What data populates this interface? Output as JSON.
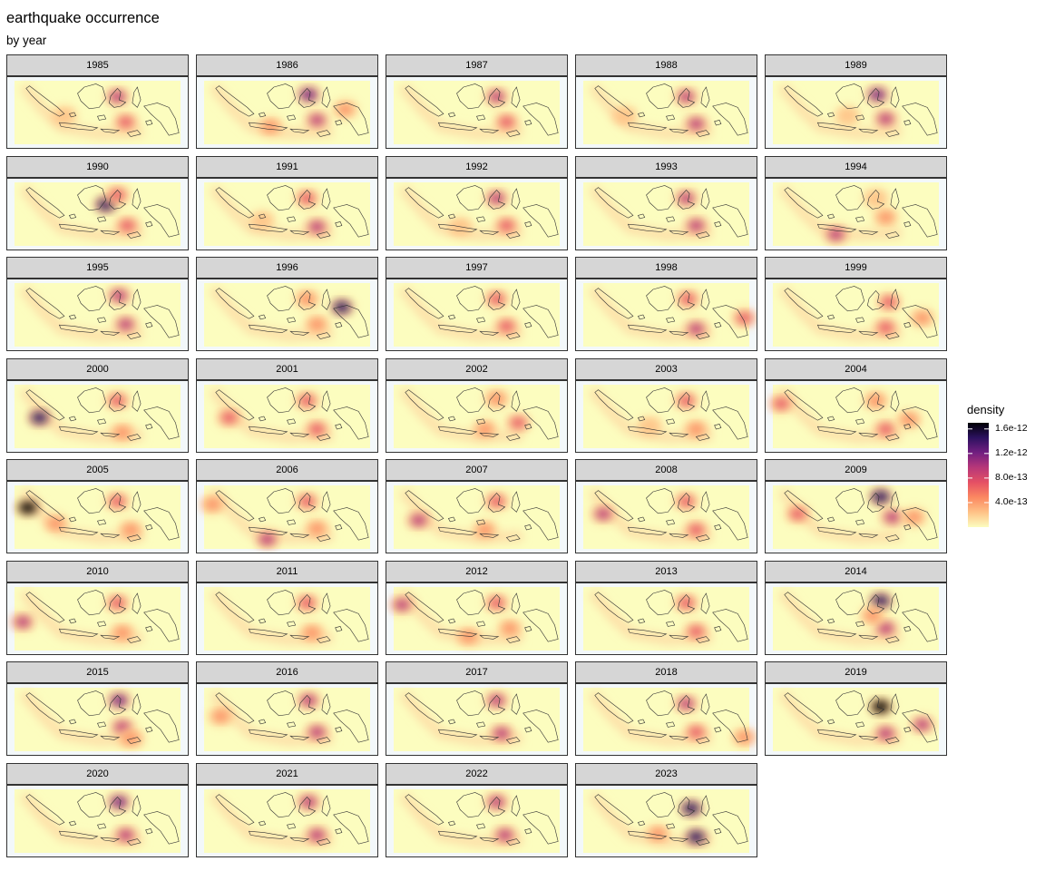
{
  "chart_data": {
    "type": "heatmap",
    "title": "earthquake occurrence",
    "subtitle": "by year",
    "facet_labels": [
      "1985",
      "1986",
      "1987",
      "1988",
      "1989",
      "1990",
      "1991",
      "1992",
      "1993",
      "1994",
      "1995",
      "1996",
      "1997",
      "1998",
      "1999",
      "2000",
      "2001",
      "2002",
      "2003",
      "2004",
      "2005",
      "2006",
      "2007",
      "2008",
      "2009",
      "2010",
      "2011",
      "2012",
      "2013",
      "2014",
      "2015",
      "2016",
      "2017",
      "2018",
      "2019",
      "2020",
      "2021",
      "2022",
      "2023"
    ],
    "legend": {
      "title": "density",
      "position": "right",
      "ticks": [
        "1.6e-12",
        "1.2e-12",
        "8.0e-13",
        "4.0e-13"
      ],
      "tick_values": [
        1.6e-12,
        1.2e-12,
        8e-13,
        4e-13
      ],
      "range": [
        0,
        1.7e-12
      ],
      "colors": [
        "#fcfdbf",
        "#fec287",
        "#fb8861",
        "#e55064",
        "#b73779",
        "#721f81",
        "#2c115f",
        "#000004"
      ]
    },
    "hotspots": {
      "1985": [
        [
          0.62,
          0.25,
          0.55
        ],
        [
          0.67,
          0.65,
          0.4
        ],
        [
          0.3,
          0.55,
          0.2
        ]
      ],
      "1986": [
        [
          0.63,
          0.22,
          0.75
        ],
        [
          0.68,
          0.62,
          0.5
        ],
        [
          0.4,
          0.72,
          0.25
        ],
        [
          0.85,
          0.45,
          0.25
        ]
      ],
      "1987": [
        [
          0.62,
          0.25,
          0.5
        ],
        [
          0.68,
          0.65,
          0.45
        ]
      ],
      "1988": [
        [
          0.62,
          0.25,
          0.5
        ],
        [
          0.68,
          0.68,
          0.55
        ],
        [
          0.25,
          0.55,
          0.2
        ]
      ],
      "1989": [
        [
          0.63,
          0.22,
          0.65
        ],
        [
          0.68,
          0.6,
          0.55
        ],
        [
          0.45,
          0.55,
          0.2
        ]
      ],
      "1990": [
        [
          0.55,
          0.35,
          0.85
        ],
        [
          0.62,
          0.2,
          0.45
        ],
        [
          0.68,
          0.68,
          0.45
        ]
      ],
      "1991": [
        [
          0.62,
          0.25,
          0.45
        ],
        [
          0.68,
          0.7,
          0.55
        ],
        [
          0.35,
          0.6,
          0.2
        ]
      ],
      "1992": [
        [
          0.62,
          0.25,
          0.55
        ],
        [
          0.68,
          0.68,
          0.45
        ],
        [
          0.4,
          0.7,
          0.2
        ]
      ],
      "1993": [
        [
          0.62,
          0.25,
          0.5
        ],
        [
          0.68,
          0.68,
          0.55
        ]
      ],
      "1994": [
        [
          0.38,
          0.82,
          0.6
        ],
        [
          0.68,
          0.55,
          0.25
        ],
        [
          0.62,
          0.25,
          0.2
        ]
      ],
      "1995": [
        [
          0.63,
          0.2,
          0.6
        ],
        [
          0.67,
          0.65,
          0.5
        ]
      ],
      "1996": [
        [
          0.83,
          0.38,
          0.8
        ],
        [
          0.62,
          0.25,
          0.35
        ],
        [
          0.68,
          0.65,
          0.3
        ]
      ],
      "1997": [
        [
          0.62,
          0.25,
          0.45
        ],
        [
          0.68,
          0.68,
          0.45
        ]
      ],
      "1998": [
        [
          0.63,
          0.25,
          0.45
        ],
        [
          0.68,
          0.72,
          0.5
        ],
        [
          0.97,
          0.55,
          0.45
        ]
      ],
      "1999": [
        [
          0.7,
          0.3,
          0.45
        ],
        [
          0.68,
          0.7,
          0.45
        ],
        [
          0.9,
          0.55,
          0.25
        ]
      ],
      "2000": [
        [
          0.15,
          0.52,
          0.8
        ],
        [
          0.62,
          0.25,
          0.4
        ],
        [
          0.65,
          0.75,
          0.25
        ]
      ],
      "2001": [
        [
          0.15,
          0.52,
          0.45
        ],
        [
          0.62,
          0.25,
          0.4
        ],
        [
          0.68,
          0.7,
          0.45
        ]
      ],
      "2002": [
        [
          0.75,
          0.6,
          0.4
        ],
        [
          0.62,
          0.22,
          0.35
        ],
        [
          0.55,
          0.7,
          0.3
        ]
      ],
      "2003": [
        [
          0.62,
          0.25,
          0.4
        ],
        [
          0.68,
          0.7,
          0.35
        ],
        [
          0.4,
          0.65,
          0.2
        ]
      ],
      "2004": [
        [
          0.05,
          0.3,
          0.45
        ],
        [
          0.68,
          0.7,
          0.4
        ],
        [
          0.82,
          0.55,
          0.35
        ],
        [
          0.62,
          0.25,
          0.35
        ]
      ],
      "2005": [
        [
          0.08,
          0.35,
          0.95
        ],
        [
          0.25,
          0.6,
          0.25
        ],
        [
          0.62,
          0.25,
          0.4
        ],
        [
          0.7,
          0.7,
          0.3
        ]
      ],
      "2006": [
        [
          0.38,
          0.85,
          0.6
        ],
        [
          0.05,
          0.3,
          0.35
        ],
        [
          0.62,
          0.25,
          0.4
        ],
        [
          0.68,
          0.68,
          0.3
        ]
      ],
      "2007": [
        [
          0.15,
          0.55,
          0.55
        ],
        [
          0.62,
          0.25,
          0.45
        ],
        [
          0.55,
          0.7,
          0.35
        ]
      ],
      "2008": [
        [
          0.12,
          0.45,
          0.5
        ],
        [
          0.62,
          0.25,
          0.4
        ],
        [
          0.68,
          0.7,
          0.45
        ]
      ],
      "2009": [
        [
          0.65,
          0.18,
          0.9
        ],
        [
          0.72,
          0.5,
          0.55
        ],
        [
          0.15,
          0.45,
          0.4
        ],
        [
          0.85,
          0.5,
          0.3
        ]
      ],
      "2010": [
        [
          0.05,
          0.55,
          0.55
        ],
        [
          0.62,
          0.25,
          0.4
        ],
        [
          0.65,
          0.72,
          0.3
        ]
      ],
      "2011": [
        [
          0.62,
          0.25,
          0.45
        ],
        [
          0.65,
          0.72,
          0.35
        ]
      ],
      "2012": [
        [
          0.05,
          0.28,
          0.55
        ],
        [
          0.62,
          0.25,
          0.4
        ],
        [
          0.45,
          0.78,
          0.3
        ],
        [
          0.7,
          0.65,
          0.25
        ]
      ],
      "2013": [
        [
          0.62,
          0.25,
          0.45
        ],
        [
          0.68,
          0.7,
          0.4
        ]
      ],
      "2014": [
        [
          0.65,
          0.22,
          0.85
        ],
        [
          0.68,
          0.65,
          0.6
        ],
        [
          0.6,
          0.45,
          0.3
        ]
      ],
      "2015": [
        [
          0.63,
          0.2,
          0.65
        ],
        [
          0.65,
          0.62,
          0.55
        ],
        [
          0.7,
          0.8,
          0.3
        ]
      ],
      "2016": [
        [
          0.63,
          0.2,
          0.55
        ],
        [
          0.68,
          0.7,
          0.55
        ],
        [
          0.1,
          0.45,
          0.35
        ]
      ],
      "2017": [
        [
          0.62,
          0.2,
          0.5
        ],
        [
          0.65,
          0.72,
          0.6
        ]
      ],
      "2018": [
        [
          0.62,
          0.25,
          0.5
        ],
        [
          0.68,
          0.7,
          0.45
        ],
        [
          0.97,
          0.78,
          0.35
        ]
      ],
      "2019": [
        [
          0.65,
          0.3,
          0.95
        ],
        [
          0.68,
          0.72,
          0.6
        ],
        [
          0.9,
          0.58,
          0.5
        ]
      ],
      "2020": [
        [
          0.63,
          0.2,
          0.65
        ],
        [
          0.67,
          0.72,
          0.55
        ]
      ],
      "2021": [
        [
          0.63,
          0.2,
          0.6
        ],
        [
          0.68,
          0.72,
          0.6
        ]
      ],
      "2022": [
        [
          0.62,
          0.2,
          0.55
        ],
        [
          0.67,
          0.72,
          0.55
        ]
      ],
      "2023": [
        [
          0.65,
          0.3,
          0.9
        ],
        [
          0.68,
          0.75,
          0.85
        ],
        [
          0.45,
          0.7,
          0.25
        ]
      ]
    }
  }
}
